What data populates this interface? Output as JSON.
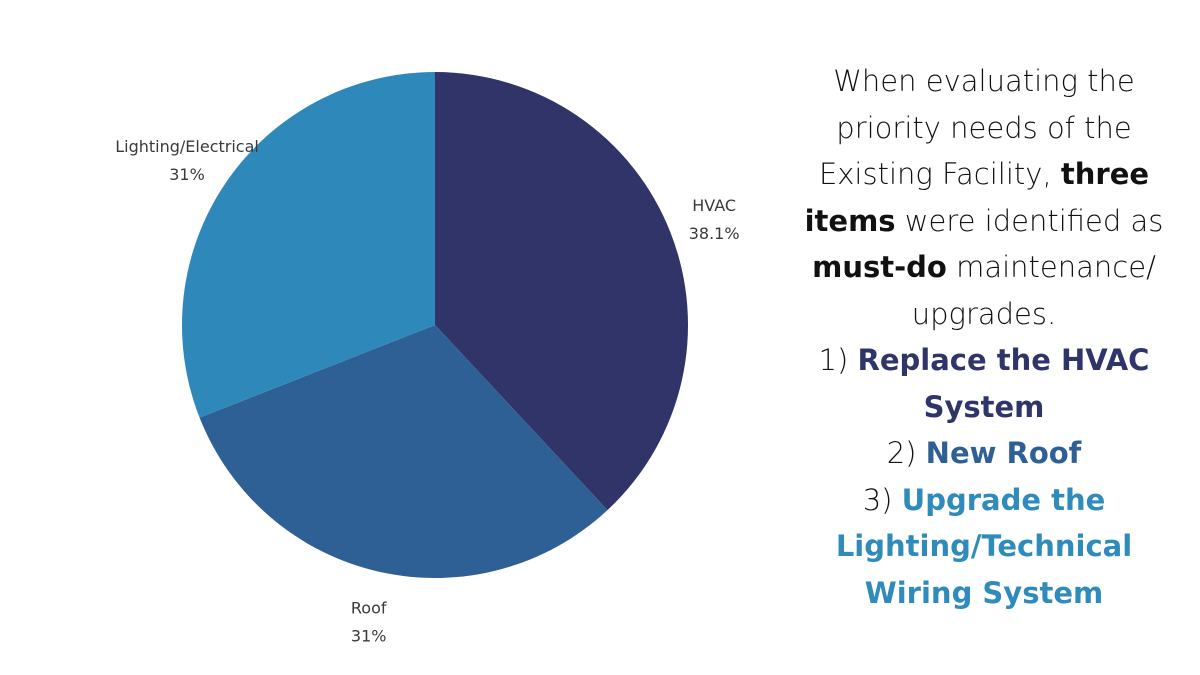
{
  "chart_data": {
    "type": "pie",
    "slices": [
      {
        "label": "HVAC",
        "value": 38.1,
        "value_label": "38.1%",
        "color": "#313468"
      },
      {
        "label": "Roof",
        "value": 31,
        "value_label": "31%",
        "color": "#2e5f95"
      },
      {
        "label": "Lighting/Electrical",
        "value": 31,
        "value_label": "31%",
        "color": "#2e89ba"
      }
    ],
    "start_angle_deg": 0,
    "direction": "clockwise"
  },
  "sidebar": {
    "intro": {
      "part1": "When evaluating the priority needs of the Existing Facility,",
      "bold1": "three items",
      "part2": "were identified as",
      "bold2": "must-do",
      "part3": "maintenance/ upgrades."
    },
    "items": [
      {
        "number": "1)",
        "text": "Replace the HVAC System",
        "color": "#2f3469"
      },
      {
        "number": "2)",
        "text": "New Roof",
        "color": "#2e6096"
      },
      {
        "number": "3)",
        "text": "Upgrade the Lighting/Technical Wiring System",
        "color": "#2e8bbb"
      }
    ]
  }
}
